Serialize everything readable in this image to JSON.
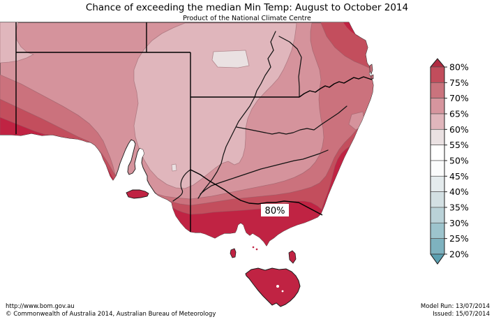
{
  "header": {
    "title": "Chance of exceeding the median Min Temp: August to October 2014",
    "subtitle": "Product of the National Climate Centre"
  },
  "map": {
    "overlay_label": "80%"
  },
  "legend": {
    "tick_labels": [
      "80%",
      "75%",
      "70%",
      "65%",
      "60%",
      "55%",
      "50%",
      "45%",
      "40%",
      "35%",
      "30%",
      "25%",
      "20%"
    ],
    "above_arrow_color": "#b02c42",
    "segment_colors": [
      "#c24d5c",
      "#ca737d",
      "#d6959e",
      "#e0b6bc",
      "#eae1e2",
      "#ffffff",
      "#fbfcfc",
      "#e4ebed",
      "#d3e0e3",
      "#bad2d8",
      "#9dc4cd",
      "#7eb2bf"
    ],
    "below_arrow_color": "#5ba0b1"
  },
  "map_palette": {
    "ocean": "#ffffff",
    "band_55_60": "#eae1e2",
    "band_60_65": "#e0b6bc",
    "band_65_70": "#d5939c",
    "band_70_75": "#cb727d",
    "band_75_80": "#c34e5d",
    "band_80_plus": "#c02343",
    "coast_line": "#1a1a1a",
    "border_line": "#000000",
    "contour_line": "#8d5a62"
  },
  "footer": {
    "url": "http://www.bom.gov.au",
    "copyright": "©  Commonwealth of Australia 2014, Australian Bureau of Meteorology",
    "model_run": "Model Run: 13/07/2014",
    "issued": "Issued: 15/07/2014"
  }
}
